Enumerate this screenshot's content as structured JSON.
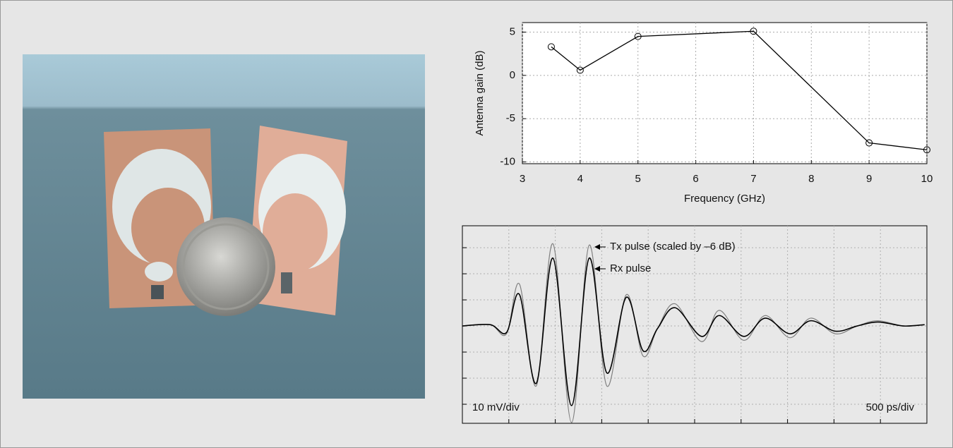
{
  "chart_data": [
    {
      "type": "line",
      "x_label": "Frequency (GHz)",
      "y_label": "Antenna gain (dB)",
      "x": [
        3.5,
        4,
        5,
        7,
        9,
        10
      ],
      "values": [
        3.3,
        0.6,
        4.5,
        5.1,
        -7.8,
        -8.6
      ],
      "color": "#000000",
      "xlim": [
        3,
        10
      ],
      "ylim": [
        -10.2,
        6.1
      ],
      "xticks": [
        3,
        4,
        5,
        6,
        7,
        8,
        9,
        10
      ],
      "yticks": [
        -10,
        -5,
        0,
        5
      ],
      "grid": true,
      "marker": "open-circle"
    },
    {
      "type": "waveform",
      "x": [
        0,
        0.6,
        0.95,
        1.23,
        1.59,
        1.95,
        2.35,
        2.73,
        3.11,
        3.53,
        3.89,
        4.2,
        4.58,
        5.15,
        5.53,
        6.06,
        6.52,
        7.05,
        7.5,
        8.03,
        8.5,
        8.94,
        9.5,
        9.95
      ],
      "series": [
        {
          "name": "Tx pulse (scaled by –6 dB)",
          "color": "#808080",
          "values": [
            0,
            0.05,
            -0.3,
            1.6,
            -2.3,
            3.15,
            -3.7,
            3.1,
            -2.3,
            1.2,
            -1.15,
            -0.1,
            0.85,
            -0.6,
            0.6,
            -0.55,
            0.4,
            -0.45,
            0.3,
            -0.3,
            0,
            0.2,
            0,
            0.05
          ]
        },
        {
          "name": "Rx pulse",
          "color": "#000000",
          "values": [
            0,
            0.05,
            -0.25,
            1.2,
            -2.2,
            2.6,
            -3.05,
            2.6,
            -1.8,
            1.1,
            -0.95,
            -0.1,
            0.7,
            -0.4,
            0.4,
            -0.4,
            0.3,
            -0.3,
            0.2,
            -0.2,
            0,
            0.15,
            0,
            0.05
          ]
        }
      ],
      "annotations": [
        "10 mV/div",
        "500 ps/div"
      ],
      "xlim": [
        0,
        10
      ],
      "ylim": [
        -3.73,
        3.84
      ],
      "xticks": [
        1,
        2,
        3,
        4,
        5,
        6,
        7,
        8,
        9
      ],
      "yticks": [
        -3,
        -2,
        -1,
        0,
        1,
        2,
        3
      ],
      "grid": true
    }
  ]
}
